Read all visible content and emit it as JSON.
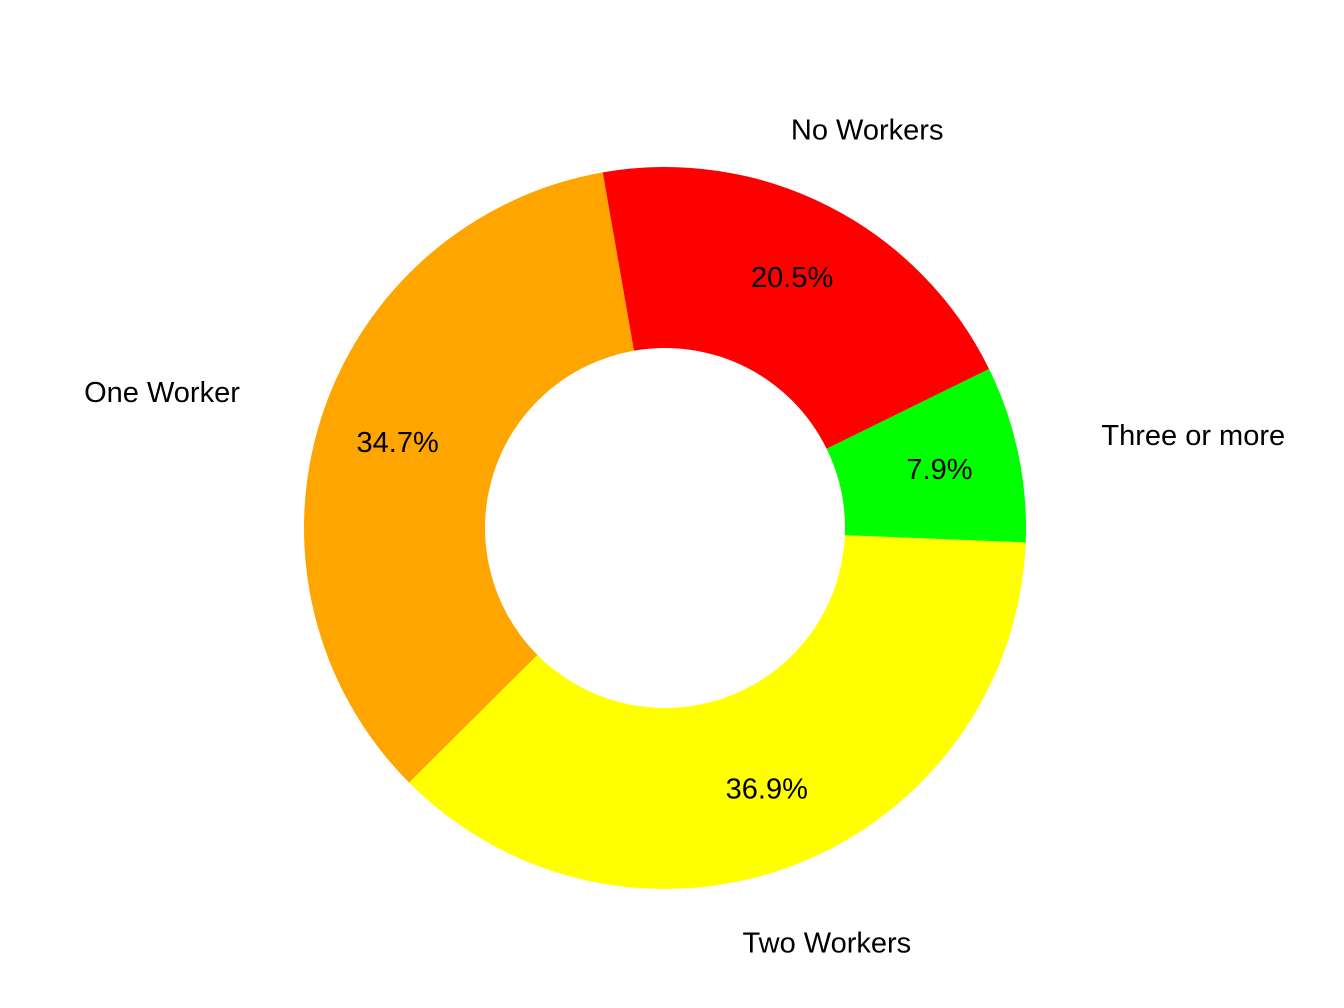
{
  "chart_data": {
    "type": "pie",
    "variant": "donut",
    "title": "",
    "slices": [
      {
        "label": "Three or more",
        "value": 7.9,
        "pct_label": "7.9%",
        "color": "#00FF00"
      },
      {
        "label": "No Workers",
        "value": 20.5,
        "pct_label": "20.5%",
        "color": "#FF0000"
      },
      {
        "label": "One Worker",
        "value": 34.7,
        "pct_label": "34.7%",
        "color": "#FFA500"
      },
      {
        "label": "Two Workers",
        "value": 36.9,
        "pct_label": "36.9%",
        "color": "#FFFF00"
      }
    ],
    "legend": "none",
    "labels_outside": true,
    "percent_labels_inside": true
  }
}
